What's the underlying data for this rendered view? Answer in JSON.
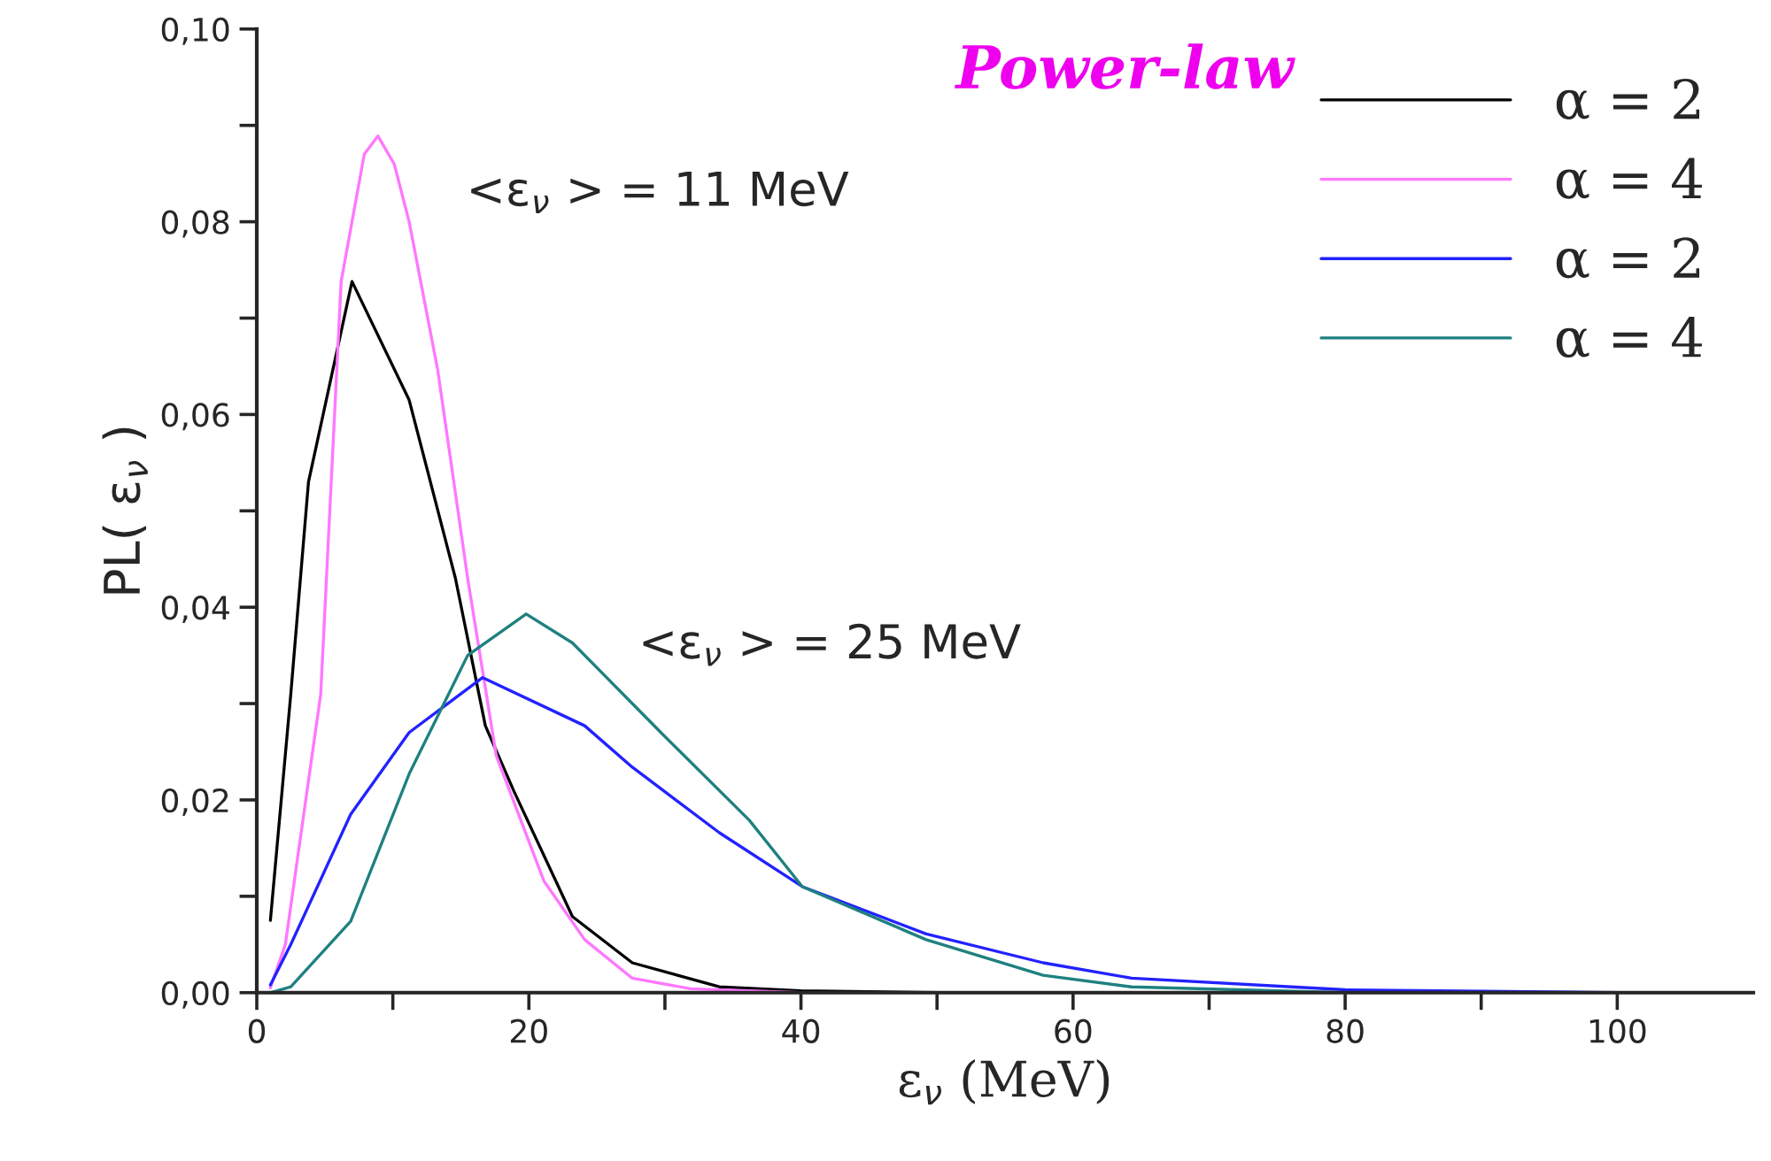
{
  "chart_data": {
    "type": "line",
    "title": "Power-law",
    "xlabel": "ε$_{ν}$ (MeV)",
    "ylabel": "PL( ε$_{ν}$ )",
    "annotations": [
      "<ε$_{ν}$ > = 11 MeV",
      "<ε$_{ν}$ > = 25 MeV"
    ],
    "xlim": [
      0,
      110
    ],
    "ylim": [
      0,
      0.1
    ],
    "xticks": [
      0,
      {
        "value": 10,
        "label": null
      },
      20,
      {
        "value": 30,
        "label": null
      },
      40,
      {
        "value": 50,
        "label": null
      },
      60,
      {
        "value": 70,
        "label": null
      },
      80,
      {
        "value": 90,
        "label": null
      },
      100
    ],
    "yticks": [
      {
        "value": 0,
        "label": "0,00"
      },
      {
        "value": 0.01,
        "label": null
      },
      {
        "value": 0.02,
        "label": "0,02"
      },
      {
        "value": 0.03,
        "label": null
      },
      {
        "value": 0.04,
        "label": "0,04"
      },
      {
        "value": 0.05,
        "label": null
      },
      {
        "value": 0.06,
        "label": "0,06"
      },
      {
        "value": 0.07,
        "label": null
      },
      {
        "value": 0.08,
        "label": "0,08"
      },
      {
        "value": 0.09,
        "label": null
      },
      {
        "value": 0.1,
        "label": "0,10"
      }
    ],
    "grid": false,
    "legend": "top right",
    "marker": "none",
    "line_style": "solid",
    "series": [
      {
        "name": "α = 2",
        "color": "#000000",
        "x": [
          1,
          2.5,
          3.8,
          7,
          11.2,
          14.6,
          16.8,
          18.9,
          23.2,
          27.6,
          34,
          40,
          50,
          100
        ],
        "values": [
          0.0075,
          0.031,
          0.053,
          0.0738,
          0.0615,
          0.043,
          0.0277,
          0.0209,
          0.0079,
          0.0031,
          0.0006,
          0.0002,
          0,
          0
        ]
      },
      {
        "name": "α = 4",
        "color": "#ff77ff",
        "x": [
          1,
          2.1,
          4.7,
          6.2,
          7.9,
          8.9,
          10.1,
          11.2,
          13.3,
          15.5,
          17.6,
          21.1,
          24.1,
          27.6,
          31.9,
          40,
          100
        ],
        "values": [
          0.0005,
          0.005,
          0.031,
          0.0738,
          0.087,
          0.0889,
          0.086,
          0.08,
          0.0646,
          0.043,
          0.0246,
          0.0116,
          0.0055,
          0.0015,
          0.0004,
          0,
          0
        ]
      },
      {
        "name": "α = 2",
        "color": "#2222ff",
        "x": [
          1,
          2.5,
          6.9,
          11.2,
          16.6,
          24.1,
          27.6,
          34,
          40.1,
          49.2,
          57.8,
          64.3,
          80,
          100
        ],
        "values": [
          0.0008,
          0.005,
          0.0185,
          0.027,
          0.0327,
          0.0277,
          0.0234,
          0.0166,
          0.011,
          0.0061,
          0.0031,
          0.0015,
          0.0003,
          0
        ]
      },
      {
        "name": "α = 4",
        "color": "#1f8080",
        "x": [
          1,
          2.5,
          6.9,
          11.2,
          15.5,
          19.8,
          23.2,
          29.7,
          36.2,
          40.1,
          49.2,
          57.8,
          64.3,
          80
        ],
        "values": [
          0,
          0.0006,
          0.0074,
          0.0227,
          0.035,
          0.0393,
          0.0363,
          0.027,
          0.0179,
          0.011,
          0.0055,
          0.0018,
          0.0006,
          0
        ]
      }
    ]
  }
}
